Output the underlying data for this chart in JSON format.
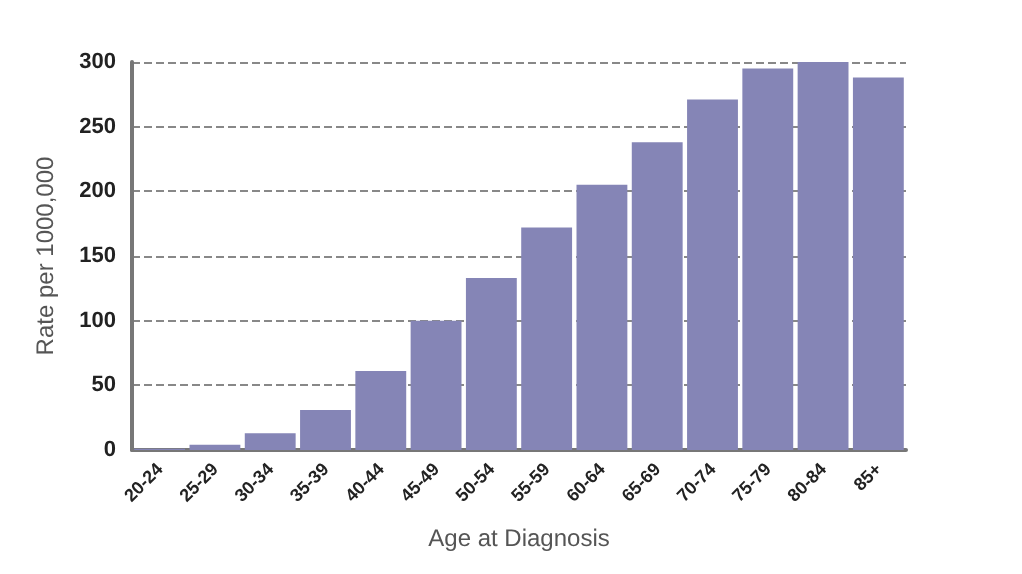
{
  "chart_data": {
    "type": "bar",
    "xlabel": "Age at Diagnosis",
    "ylabel": "Rate per 1000,000",
    "categories": [
      "20-24",
      "25-29",
      "30-34",
      "35-39",
      "40-44",
      "45-49",
      "50-54",
      "55-59",
      "60-64",
      "65-69",
      "70-74",
      "75-79",
      "80-84",
      "85+"
    ],
    "values": [
      1,
      4,
      13,
      31,
      61,
      100,
      133,
      172,
      205,
      238,
      271,
      295,
      300,
      288
    ],
    "color": "#8585b6",
    "ylim": [
      0,
      300
    ],
    "yticks": [
      0,
      50,
      100,
      150,
      200,
      250,
      300
    ],
    "grid": "y"
  }
}
